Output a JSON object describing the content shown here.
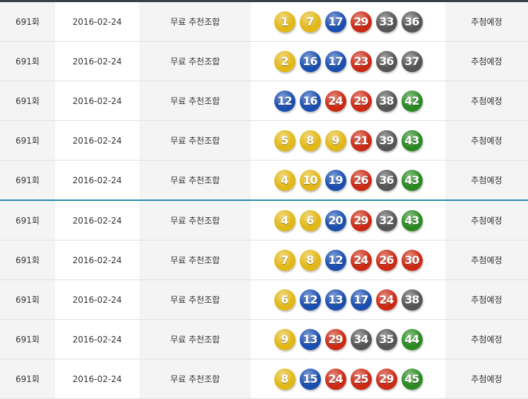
{
  "colors": {
    "yellow": "#e2b817",
    "blue": "#1a4fb0",
    "red": "#cc2a14",
    "gray": "#555555",
    "green": "#2a8a22",
    "separator": "#2a8ab0"
  },
  "rows": [
    {
      "round": "691회",
      "date": "2016-02-24",
      "label": "무료 추천조합",
      "numbers": [
        1,
        7,
        17,
        29,
        33,
        36
      ],
      "status": "추첨예정"
    },
    {
      "round": "691회",
      "date": "2016-02-24",
      "label": "무료 추천조합",
      "numbers": [
        2,
        16,
        17,
        23,
        36,
        37
      ],
      "status": "추첨예정"
    },
    {
      "round": "691회",
      "date": "2016-02-24",
      "label": "무료 추천조합",
      "numbers": [
        12,
        16,
        24,
        29,
        38,
        42
      ],
      "status": "추첨예정"
    },
    {
      "round": "691회",
      "date": "2016-02-24",
      "label": "무료 추천조합",
      "numbers": [
        5,
        8,
        9,
        21,
        39,
        43
      ],
      "status": "추첨예정"
    },
    {
      "round": "691회",
      "date": "2016-02-24",
      "label": "무료 추천조합",
      "numbers": [
        4,
        10,
        19,
        26,
        36,
        43
      ],
      "status": "추첨예정"
    },
    {
      "round": "691회",
      "date": "2016-02-24",
      "label": "무료 추천조합",
      "numbers": [
        4,
        6,
        20,
        29,
        32,
        43
      ],
      "status": "추첨예정"
    },
    {
      "round": "691회",
      "date": "2016-02-24",
      "label": "무료 추천조합",
      "numbers": [
        7,
        8,
        12,
        24,
        26,
        30
      ],
      "status": "추첨예정"
    },
    {
      "round": "691회",
      "date": "2016-02-24",
      "label": "무료 추천조합",
      "numbers": [
        6,
        12,
        13,
        17,
        24,
        38
      ],
      "status": "추첨예정"
    },
    {
      "round": "691회",
      "date": "2016-02-24",
      "label": "무료 추천조합",
      "numbers": [
        9,
        13,
        29,
        34,
        35,
        44
      ],
      "status": "추첨예정"
    },
    {
      "round": "691회",
      "date": "2016-02-24",
      "label": "무료 추천조합",
      "numbers": [
        8,
        15,
        24,
        25,
        29,
        45
      ],
      "status": "추첨예정"
    }
  ]
}
